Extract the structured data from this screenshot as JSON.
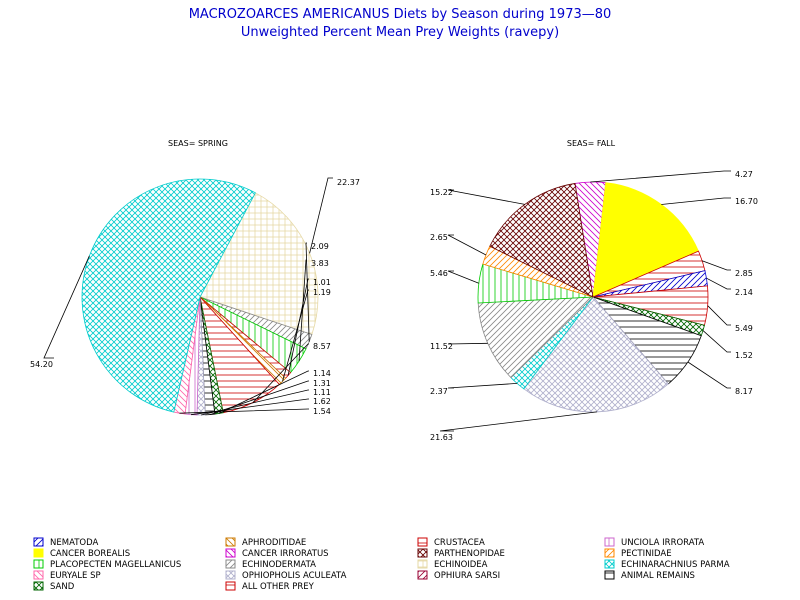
{
  "chart_data": {
    "type": "pie",
    "title": "MACROZOARCES AMERICANUS Diets by Season during 1973—80",
    "subtitle": "Unweighted Percent Mean Prey Weights (ravepy)",
    "colors": {
      "nematoda": "#0000cc",
      "aphroditidae": "#cc7a00",
      "crustacea": "#cc0000",
      "unciola": "#cc66cc",
      "cancer_borealis": "#ffff00",
      "cancer_irroratus": "#cc00cc",
      "parthenopidae": "#660000",
      "pectinidae": "#ff8800",
      "placopecten": "#00cc00",
      "echinodermata": "#888888",
      "echinoidea": "#e6d9a6",
      "echinarachnius": "#00cccc",
      "euryale": "#ff66aa",
      "ophiopholis": "#b0b0cc",
      "ophiura": "#990033",
      "animal_remains": "#000000",
      "sand": "#006600",
      "all_other": "#cc0000"
    },
    "legend": [
      {
        "key": "nematoda",
        "label": "NEMATODA"
      },
      {
        "key": "aphroditidae",
        "label": "APHRODITIDAE"
      },
      {
        "key": "crustacea",
        "label": "CRUSTACEA"
      },
      {
        "key": "unciola",
        "label": "UNCIOLA IRRORATA"
      },
      {
        "key": "cancer_borealis",
        "label": "CANCER BOREALIS"
      },
      {
        "key": "cancer_irroratus",
        "label": "CANCER IRRORATUS"
      },
      {
        "key": "parthenopidae",
        "label": "PARTHENOPIDAE"
      },
      {
        "key": "pectinidae",
        "label": "PECTINIDAE"
      },
      {
        "key": "placopecten",
        "label": "PLACOPECTEN MAGELLANICUS"
      },
      {
        "key": "echinodermata",
        "label": "ECHINODERMATA"
      },
      {
        "key": "echinoidea",
        "label": "ECHINOIDEA"
      },
      {
        "key": "echinarachnius",
        "label": "ECHINARACHNIUS PARMA"
      },
      {
        "key": "euryale",
        "label": "EURYALE SP"
      },
      {
        "key": "ophiopholis",
        "label": "OPHIOPHOLIS ACULEATA"
      },
      {
        "key": "ophiura",
        "label": "OPHIURA SARSI"
      },
      {
        "key": "animal_remains",
        "label": "ANIMAL REMAINS"
      },
      {
        "key": "sand",
        "label": "SAND"
      },
      {
        "key": "all_other",
        "label": "ALL OTHER PREY"
      }
    ],
    "pies": [
      {
        "title": "SEAS= SPRING",
        "slices": [
          {
            "key": "echinoidea",
            "value": 22.37,
            "label": "22.37"
          },
          {
            "key": "echinodermata",
            "value": 2.09,
            "label": "2.09"
          },
          {
            "key": "placopecten",
            "value": 3.83,
            "label": "3.83"
          },
          {
            "key": "all_other",
            "value": 1.01,
            "label": "1.01"
          },
          {
            "key": "aphroditidae",
            "value": 1.19,
            "label": "1.19"
          },
          {
            "key": "crustacea",
            "value": 8.57,
            "label": "8.57"
          },
          {
            "key": "sand",
            "value": 1.14,
            "label": "1.14"
          },
          {
            "key": "animal_remains",
            "value": 1.31,
            "label": "1.31"
          },
          {
            "key": "ophiopholis",
            "value": 1.11,
            "label": "1.11"
          },
          {
            "key": "unciola",
            "value": 1.62,
            "label": "1.62"
          },
          {
            "key": "euryale",
            "value": 1.54,
            "label": "1.54"
          },
          {
            "key": "echinarachnius",
            "value": 54.2,
            "label": "54.20"
          }
        ]
      },
      {
        "title": "SEAS= FALL",
        "slices": [
          {
            "key": "cancer_irroratus",
            "value": 4.27,
            "label": "4.27"
          },
          {
            "key": "cancer_borealis",
            "value": 16.7,
            "label": "16.70"
          },
          {
            "key": "crustacea",
            "value": 2.85,
            "label": "2.85"
          },
          {
            "key": "nematoda",
            "value": 2.14,
            "label": "2.14"
          },
          {
            "key": "all_other",
            "value": 5.49,
            "label": "5.49"
          },
          {
            "key": "sand",
            "value": 1.52,
            "label": "1.52"
          },
          {
            "key": "animal_remains",
            "value": 8.17,
            "label": "8.17"
          },
          {
            "key": "ophiopholis",
            "value": 21.63,
            "label": "21.63"
          },
          {
            "key": "echinarachnius",
            "value": 2.37,
            "label": "2.37"
          },
          {
            "key": "echinodermata",
            "value": 11.52,
            "label": "11.52"
          },
          {
            "key": "placopecten",
            "value": 5.46,
            "label": "5.46"
          },
          {
            "key": "pectinidae",
            "value": 2.65,
            "label": "2.65"
          },
          {
            "key": "parthenopidae",
            "value": 15.22,
            "label": "15.22"
          }
        ]
      }
    ]
  }
}
